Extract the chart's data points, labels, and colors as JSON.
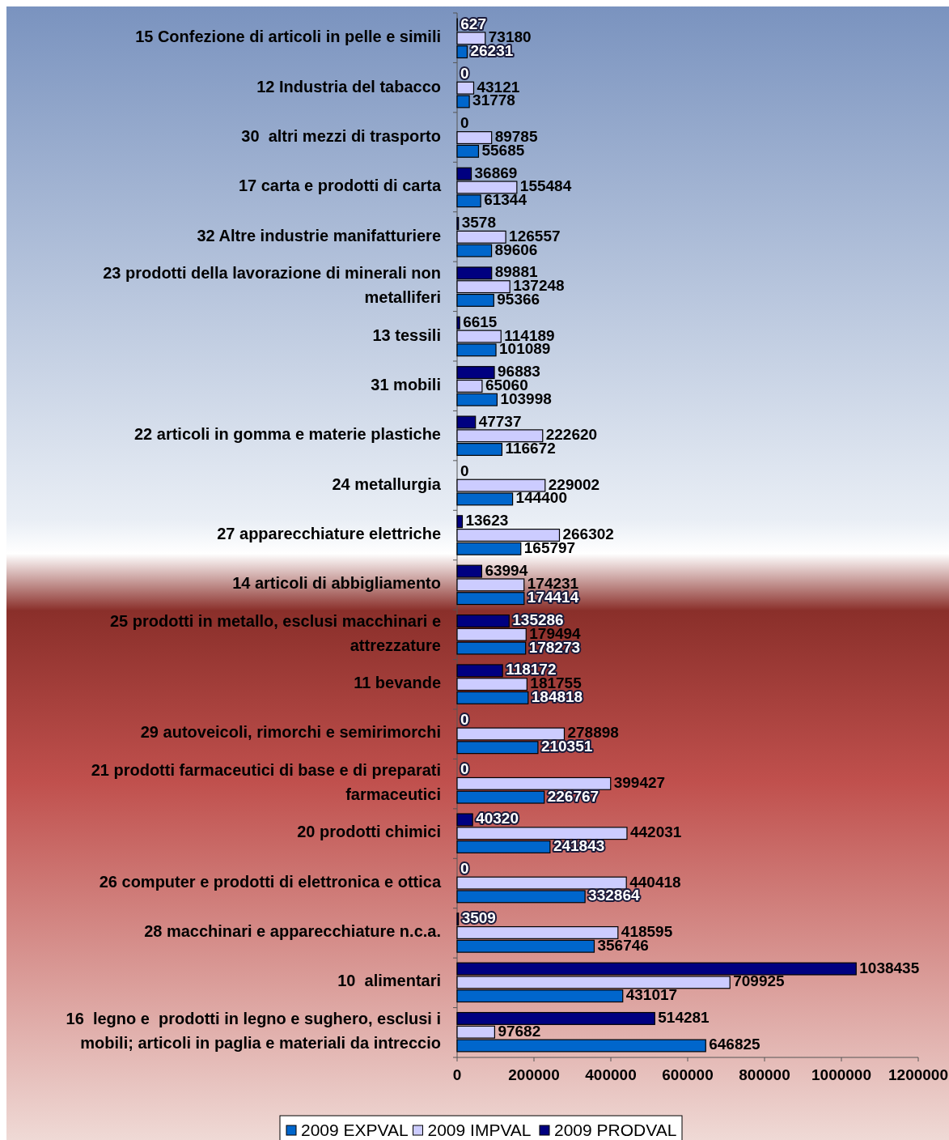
{
  "chart_data": {
    "type": "bar",
    "orientation": "horizontal",
    "categories": [
      "15 Confezione di articoli in pelle e simili",
      "12 Industria del tabacco",
      "30  altri mezzi di trasporto",
      "17 carta e prodotti di carta",
      "32 Altre industrie manifatturiere",
      "23 prodotti della lavorazione di minerali non metalliferi",
      "13 tessili",
      "31 mobili",
      "22 articoli in gomma e materie plastiche",
      "24 metallurgia",
      "27 apparecchiature elettriche",
      "14 articoli di abbigliamento",
      "25 prodotti in metallo, esclusi macchinari e attrezzature",
      "11 bevande",
      "29 autoveicoli, rimorchi e semirimorchi",
      "21 prodotti farmaceutici di base e di preparati farmaceutici",
      "20 prodotti chimici",
      "26 computer e prodotti di elettronica e ottica",
      "28 macchinari e apparecchiature n.c.a.",
      "10  alimentari",
      "16  legno e  prodotti in legno e sughero, esclusi i mobili; articoli in paglia e materiali da intreccio"
    ],
    "series": [
      {
        "name": "2009 EXPVAL",
        "color": "#0066cc",
        "values": [
          26231,
          31778,
          55685,
          61344,
          89606,
          95366,
          101089,
          103998,
          116672,
          144400,
          165797,
          174414,
          178273,
          184818,
          210351,
          226767,
          241843,
          332864,
          356746,
          431017,
          646825
        ]
      },
      {
        "name": "2009 IMPVAL",
        "color": "#ccccff",
        "values": [
          73180,
          43121,
          89785,
          155484,
          126557,
          137248,
          114189,
          65060,
          222620,
          229002,
          266302,
          174231,
          179494,
          181755,
          278898,
          399427,
          442031,
          440418,
          418595,
          709925,
          97682
        ]
      },
      {
        "name": "2009 PRODVAL",
        "color": "#000080",
        "values": [
          627,
          0,
          0,
          36869,
          3578,
          89881,
          6615,
          96883,
          47737,
          0,
          13623,
          63994,
          135286,
          118172,
          0,
          0,
          40320,
          0,
          3509,
          1038435,
          514281
        ]
      }
    ],
    "xlim": [
      0,
      1200000
    ],
    "xticks": [
      0,
      200000,
      400000,
      600000,
      800000,
      1000000,
      1200000
    ],
    "data_labels": true,
    "grid": false,
    "legend": "bottom"
  }
}
